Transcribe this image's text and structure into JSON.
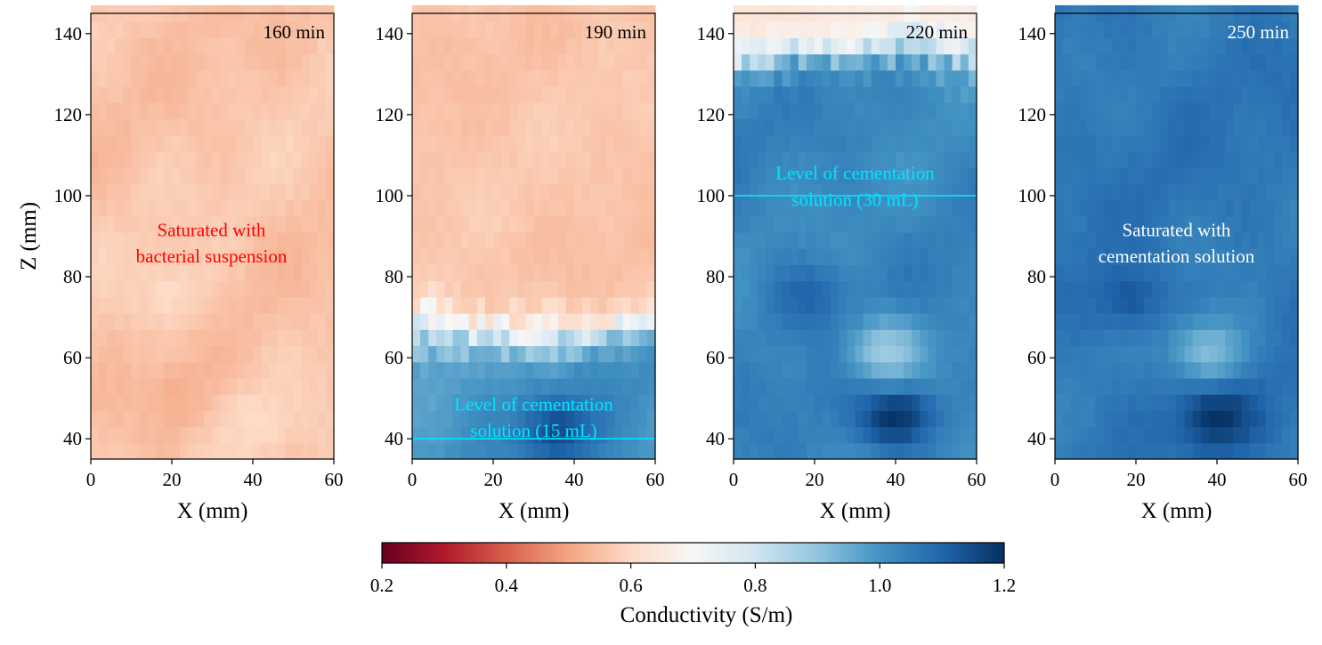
{
  "figure": {
    "colorbar": {
      "label": "Conductivity  (S/m)",
      "min": 0.2,
      "max": 1.2,
      "ticks": [
        "0.2",
        "0.4",
        "0.6",
        "0.8",
        "1.0",
        "1.2"
      ],
      "colormap": [
        "#67001f",
        "#b2182b",
        "#d6604d",
        "#f4a582",
        "#fddbc7",
        "#f7f7f7",
        "#d1e5f0",
        "#92c5de",
        "#4393c3",
        "#2166ac",
        "#053061"
      ]
    }
  },
  "chart_data": [
    {
      "type": "heatmap",
      "time_label": "160 min",
      "xlabel": "X (mm)",
      "ylabel": "Z (mm)",
      "xlim": [
        0,
        60
      ],
      "ylim": [
        35,
        145
      ],
      "xticks": [
        "0",
        "20",
        "40",
        "60"
      ],
      "yticks": [
        "40",
        "60",
        "80",
        "100",
        "120",
        "140"
      ],
      "annotation": [
        "Saturated with",
        "bacterial suspension"
      ],
      "annotation_color": "#ff0000",
      "level_line": null,
      "base_conductivity_S_per_m": 0.56,
      "features": [
        {
          "x": 22,
          "z": 50,
          "value": 0.52
        },
        {
          "x": 40,
          "z": 44,
          "value": 0.6
        },
        {
          "x": 20,
          "z": 76,
          "value": 0.6
        }
      ]
    },
    {
      "type": "heatmap",
      "time_label": "190 min",
      "xlabel": "X (mm)",
      "ylabel": "",
      "xlim": [
        0,
        60
      ],
      "ylim": [
        35,
        145
      ],
      "xticks": [
        "0",
        "20",
        "40",
        "60"
      ],
      "yticks": [
        "40",
        "60",
        "80",
        "100",
        "120",
        "140"
      ],
      "annotation": [
        "Level of cementation",
        "solution (15 mL)"
      ],
      "annotation_color": "#00e5ff",
      "level_line": {
        "z": 40,
        "color": "#00e5ff"
      },
      "front_z_mm": 67,
      "above_conductivity_S_per_m": 0.56,
      "below_conductivity_S_per_m": 1.0,
      "features": [
        {
          "x": 36,
          "z": 42,
          "value": 1.15
        }
      ]
    },
    {
      "type": "heatmap",
      "time_label": "220 min",
      "xlabel": "X (mm)",
      "ylabel": "",
      "xlim": [
        0,
        60
      ],
      "ylim": [
        35,
        145
      ],
      "xticks": [
        "0",
        "20",
        "40",
        "60"
      ],
      "yticks": [
        "40",
        "60",
        "80",
        "100",
        "120",
        "140"
      ],
      "annotation": [
        "Level of cementation",
        "solution (30 mL)"
      ],
      "annotation_color": "#00e5ff",
      "level_line": {
        "z": 100,
        "color": "#00e5ff"
      },
      "front_z_mm": 135,
      "above_conductivity_S_per_m": 0.64,
      "below_conductivity_S_per_m": 1.03,
      "features": [
        {
          "x": 40,
          "z": 46,
          "value": 1.2
        },
        {
          "x": 38,
          "z": 62,
          "value": 0.88
        },
        {
          "x": 18,
          "z": 75,
          "value": 1.1
        }
      ]
    },
    {
      "type": "heatmap",
      "time_label": "250 min",
      "xlabel": "X (mm)",
      "ylabel": "",
      "xlim": [
        0,
        60
      ],
      "ylim": [
        35,
        145
      ],
      "xticks": [
        "0",
        "20",
        "40",
        "60"
      ],
      "yticks": [
        "40",
        "60",
        "80",
        "100",
        "120",
        "140"
      ],
      "annotation": [
        "Saturated with",
        "cementation solution"
      ],
      "annotation_color": "#ffffff",
      "level_line": null,
      "base_conductivity_S_per_m": 1.06,
      "features": [
        {
          "x": 40,
          "z": 46,
          "value": 1.2
        },
        {
          "x": 38,
          "z": 62,
          "value": 0.92
        },
        {
          "x": 18,
          "z": 75,
          "value": 1.12
        }
      ]
    }
  ]
}
